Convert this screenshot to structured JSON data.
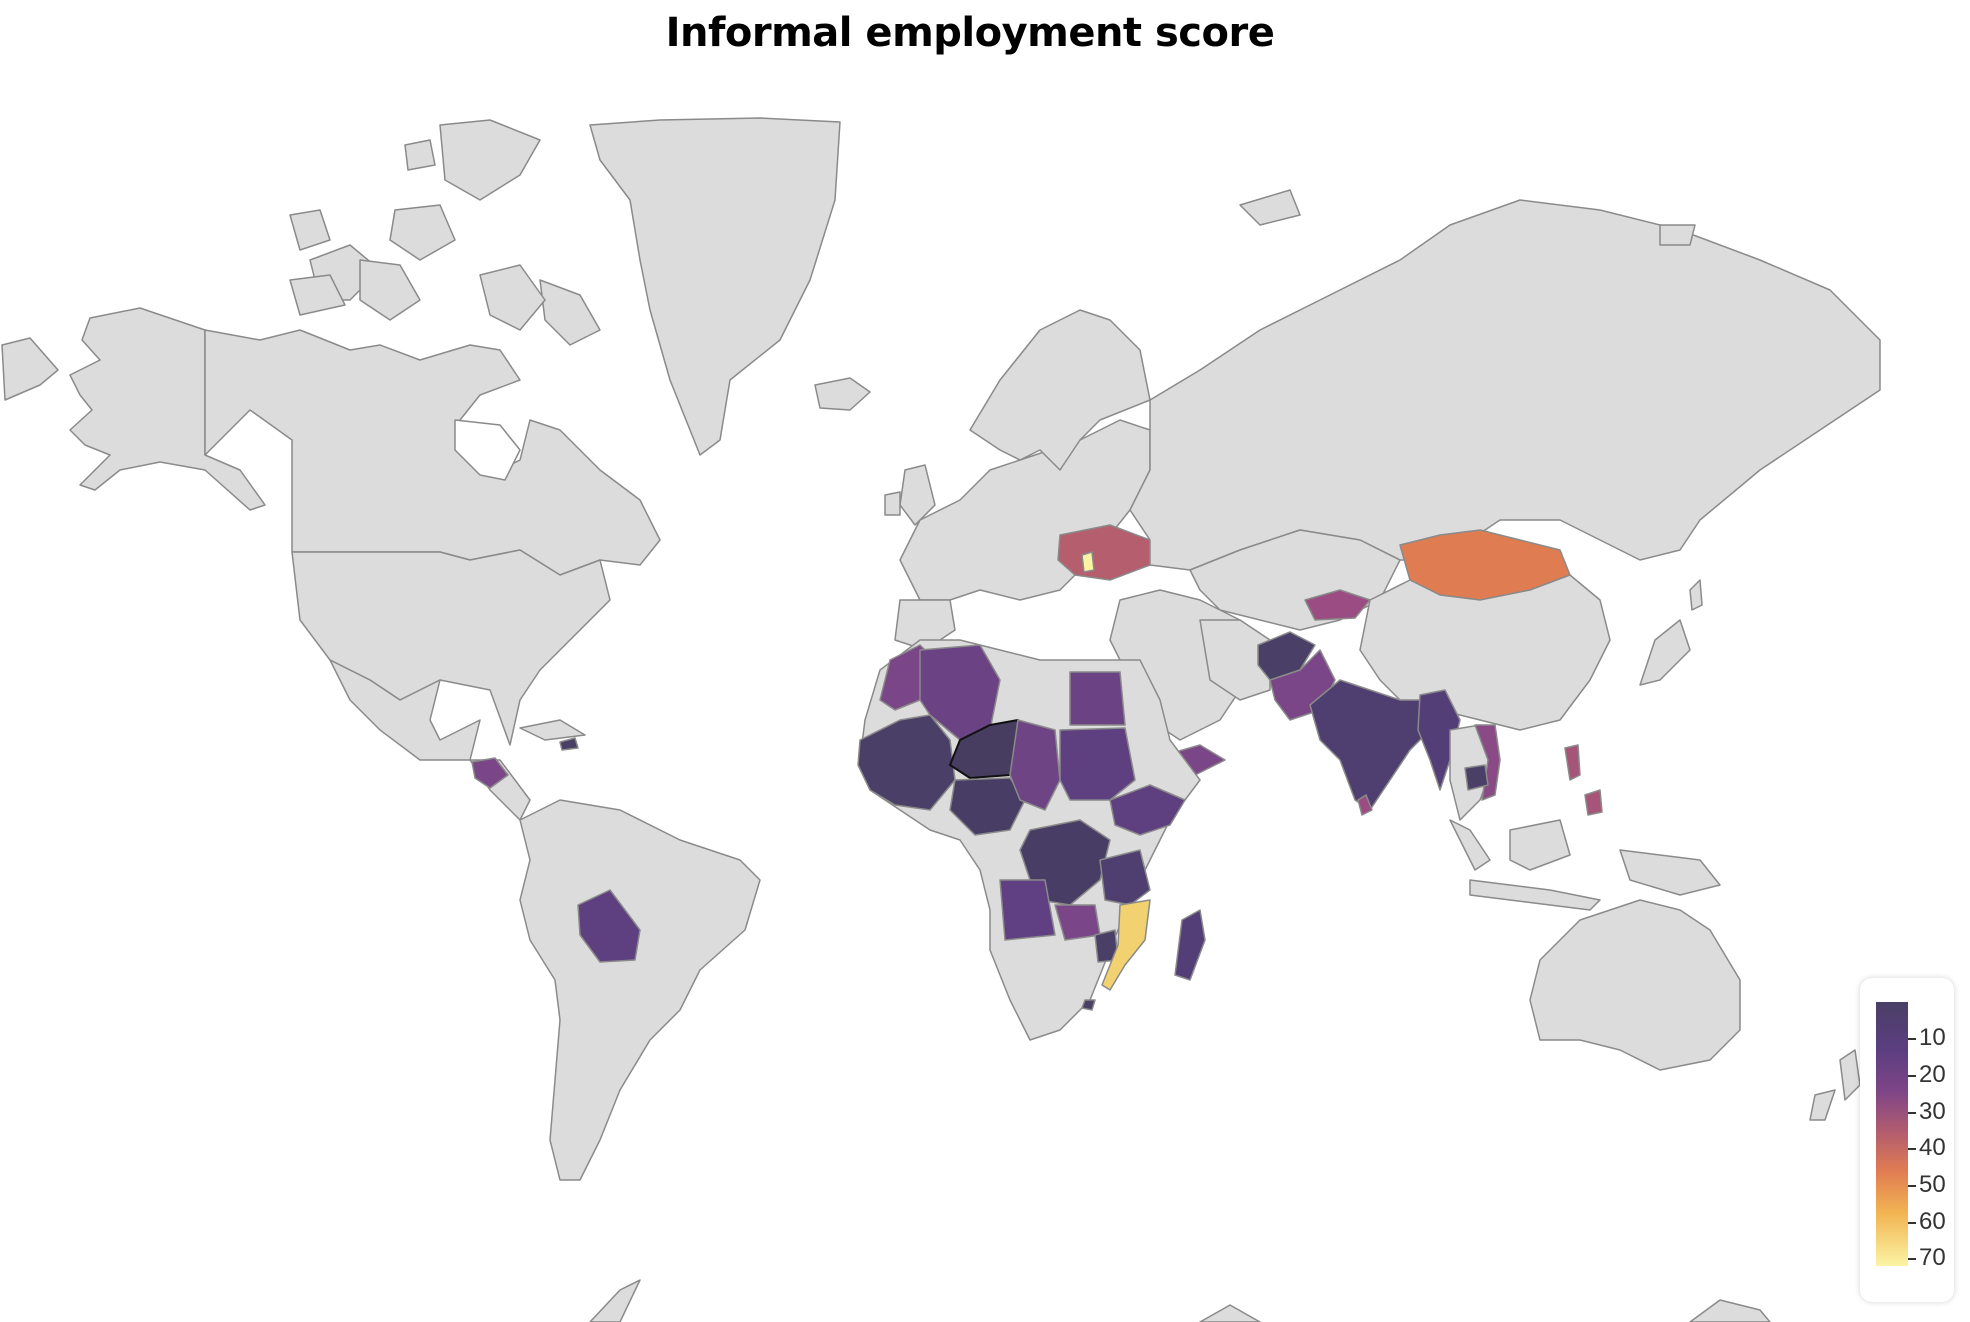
{
  "chart_data": {
    "type": "choropleth",
    "title": "Informal employment score",
    "colorbar": {
      "ticks": [
        10,
        20,
        30,
        40,
        50,
        60,
        70
      ],
      "range": [
        5,
        73
      ],
      "colorscale": "inferno-like (dark purple low, yellow high)",
      "placement": "bottom-right"
    },
    "land_color": "#dcdcdc",
    "border_color": "#808080",
    "ocean_color": "#ffffff",
    "countries_with_data": [
      {
        "region": "Western Sahara / Mauritania / Mali / Senegal area",
        "value": 8
      },
      {
        "region": "Niger",
        "value": 7
      },
      {
        "region": "Nigeria",
        "value": 8
      },
      {
        "region": "Algeria",
        "value": 19
      },
      {
        "region": "Morocco",
        "value": 22
      },
      {
        "region": "Chad",
        "value": 20
      },
      {
        "region": "Sudan",
        "value": 16
      },
      {
        "region": "Egypt",
        "value": 24
      },
      {
        "region": "Ethiopia",
        "value": 17
      },
      {
        "region": "DR Congo",
        "value": 7
      },
      {
        "region": "Tanzania",
        "value": 10
      },
      {
        "region": "Angola",
        "value": 18
      },
      {
        "region": "Zambia",
        "value": 22
      },
      {
        "region": "Zimbabwe",
        "value": 8
      },
      {
        "region": "Mozambique",
        "value": 62
      },
      {
        "region": "Madagascar",
        "value": 10
      },
      {
        "region": "Yemen",
        "value": 24
      },
      {
        "region": "Afghanistan",
        "value": 8
      },
      {
        "region": "Pakistan",
        "value": 24
      },
      {
        "region": "India",
        "value": 10
      },
      {
        "region": "Myanmar",
        "value": 12
      },
      {
        "region": "Cambodia",
        "value": 10
      },
      {
        "region": "Vietnam",
        "value": 28
      },
      {
        "region": "Philippines",
        "value": 33
      },
      {
        "region": "Sri Lanka",
        "value": 32
      },
      {
        "region": "Kyrgyzstan",
        "value": 32
      },
      {
        "region": "Mongolia",
        "value": 43
      },
      {
        "region": "Ukraine",
        "value": 36
      },
      {
        "region": "Moldova",
        "value": 70
      },
      {
        "region": "Honduras",
        "value": 24
      },
      {
        "region": "Bolivia",
        "value": 17
      },
      {
        "region": "Haiti / Dominican Republic",
        "value": 12
      },
      {
        "region": "Eswatini",
        "value": 10
      }
    ]
  }
}
